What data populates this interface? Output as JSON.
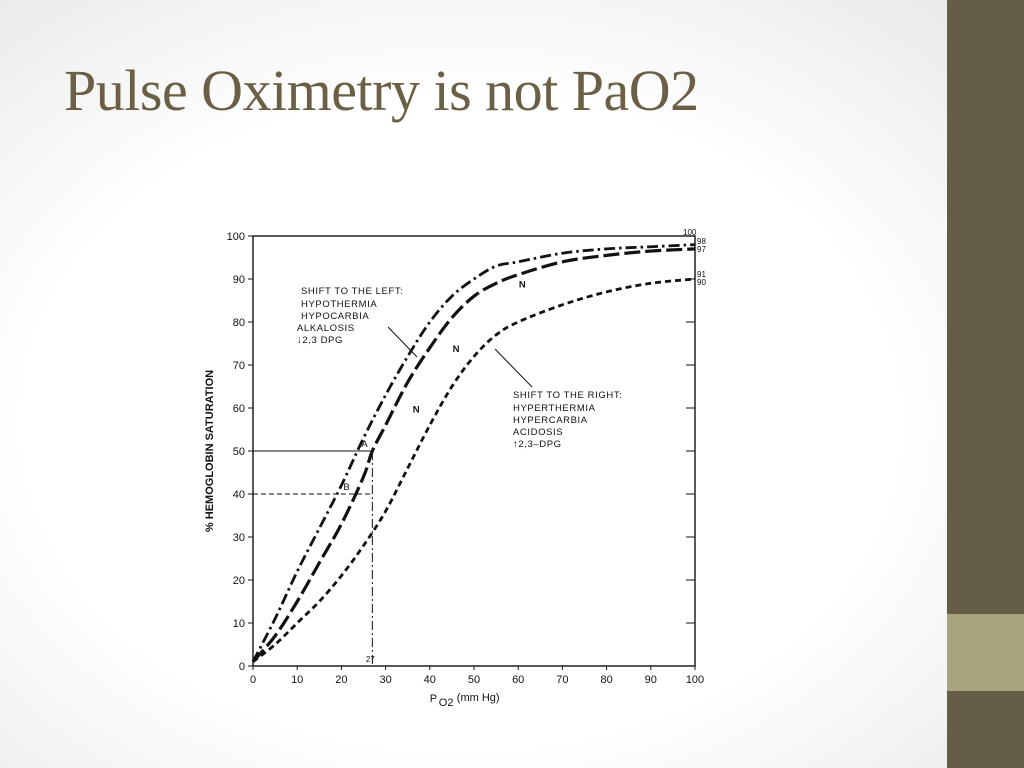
{
  "slide": {
    "title": "Pulse Oximetry is not PaO2",
    "colors": {
      "title": "#6b5f45",
      "sidebar": "#665d47",
      "accent": "#a8a47e"
    }
  },
  "chart_data": {
    "type": "line",
    "xlabel_main": "P",
    "xlabel_sub": "O2",
    "xlabel_unit": "(mm Hg)",
    "ylabel": "% HEMOGLOBIN SATURATION",
    "xlim": [
      0,
      100
    ],
    "ylim": [
      0,
      100
    ],
    "x_ticks": [
      0,
      10,
      20,
      30,
      40,
      50,
      60,
      70,
      80,
      90,
      100
    ],
    "y_ticks": [
      0,
      10,
      20,
      30,
      40,
      50,
      60,
      70,
      80,
      90,
      100
    ],
    "right_labels": [
      "100",
      "98",
      "97",
      "91",
      "90"
    ],
    "series": [
      {
        "style": "dash-dot",
        "x": [
          0,
          5,
          10,
          15,
          20,
          25,
          30,
          35,
          40,
          45,
          50,
          55,
          60,
          70,
          80,
          90,
          100
        ],
        "y": [
          1,
          11,
          22,
          32,
          42,
          53,
          63,
          72,
          80,
          86,
          90,
          93,
          94,
          96,
          97,
          97.5,
          98
        ]
      },
      {
        "style": "long-dash",
        "x": [
          0,
          5,
          10,
          15,
          20,
          25,
          27,
          30,
          35,
          40,
          45,
          50,
          55,
          60,
          70,
          80,
          90,
          100
        ],
        "y": [
          1,
          7,
          15,
          24,
          33,
          44,
          50,
          56,
          66,
          74,
          81,
          86,
          89,
          91,
          94,
          95.5,
          96.5,
          97
        ]
      },
      {
        "style": "dashed",
        "x": [
          0,
          5,
          10,
          15,
          20,
          25,
          30,
          35,
          40,
          45,
          50,
          55,
          60,
          70,
          80,
          90,
          100
        ],
        "y": [
          1,
          5,
          10,
          15,
          21,
          28,
          36,
          46,
          56,
          65,
          72,
          77,
          80,
          84,
          87,
          89,
          90
        ]
      }
    ],
    "points": [
      {
        "label": "A",
        "x": 27,
        "y": 50
      },
      {
        "label": "B",
        "x": 20,
        "y": 40
      }
    ],
    "curve_labels": [
      {
        "label": "N",
        "x": 61,
        "y": 88
      },
      {
        "label": "N",
        "x": 46,
        "y": 73
      },
      {
        "label": "N",
        "x": 37,
        "y": 59
      }
    ],
    "x_marker_label": "27",
    "left_shift": {
      "heading": "SHIFT TO THE LEFT:",
      "items": [
        "HYPOTHERMIA",
        "HYPOCARBIA",
        "ALKALOSIS",
        "↓2,3  DPG"
      ]
    },
    "right_shift": {
      "heading": "SHIFT TO THE RIGHT:",
      "items": [
        "HYPERTHERMIA",
        "HYPERCARBIA",
        "ACIDOSIS",
        "↑2,3–DPG"
      ]
    },
    "grid": false,
    "legend": "none"
  }
}
